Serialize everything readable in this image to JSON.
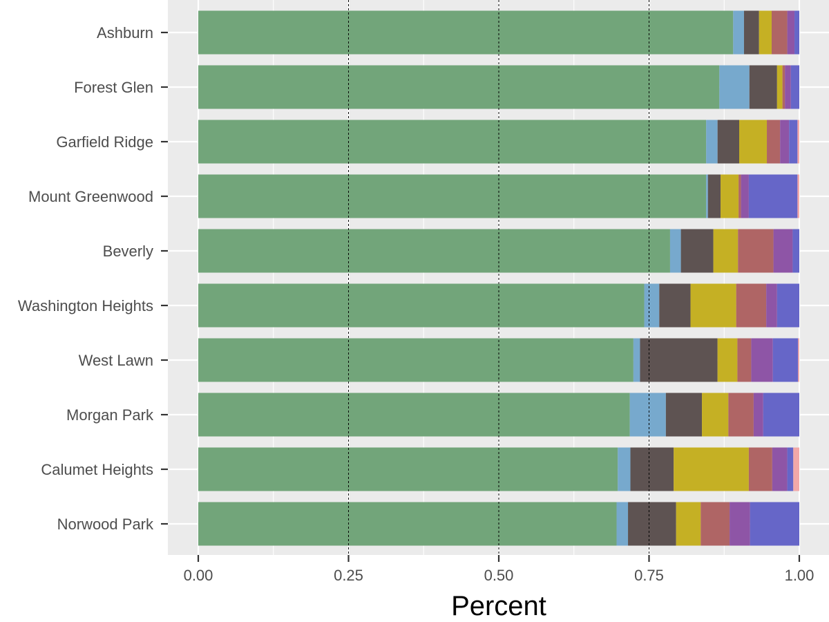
{
  "chart_data": {
    "type": "bar",
    "orientation": "horizontal",
    "stacked": true,
    "title": "",
    "xlabel": "Percent",
    "ylabel": "",
    "xlim": [
      0,
      1
    ],
    "x_ticks": [
      "0.00",
      "0.25",
      "0.50",
      "0.75",
      "1.00"
    ],
    "reference_lines": [
      0.25,
      0.5,
      0.75
    ],
    "grid": true,
    "legend": "none",
    "categories": [
      "Ashburn",
      "Forest Glen",
      "Garfield Ridge",
      "Mount Greenwood",
      "Beverly",
      "Washington Heights",
      "West Lawn",
      "Morgan Park",
      "Calumet Heights",
      "Norwood Park"
    ],
    "colors": [
      "#72a57a",
      "#77a9cd",
      "#5e5352",
      "#c5b024",
      "#af6565",
      "#8e55a6",
      "#6666c8",
      "#f2a8a8"
    ],
    "series": [
      {
        "values": [
          0.89,
          0.867,
          0.845,
          0.845,
          0.785,
          0.742,
          0.724,
          0.718,
          0.698,
          0.696
        ]
      },
      {
        "values": [
          0.018,
          0.05,
          0.019,
          0.003,
          0.018,
          0.025,
          0.011,
          0.06,
          0.021,
          0.019
        ]
      },
      {
        "values": [
          0.025,
          0.046,
          0.036,
          0.021,
          0.054,
          0.052,
          0.129,
          0.06,
          0.072,
          0.08
        ]
      },
      {
        "values": [
          0.021,
          0.009,
          0.046,
          0.03,
          0.041,
          0.076,
          0.033,
          0.044,
          0.125,
          0.041
        ]
      },
      {
        "values": [
          0.026,
          0.004,
          0.022,
          0.004,
          0.059,
          0.05,
          0.023,
          0.042,
          0.039,
          0.048
        ]
      },
      {
        "values": [
          0.012,
          0.01,
          0.015,
          0.013,
          0.032,
          0.018,
          0.036,
          0.016,
          0.025,
          0.034
        ]
      },
      {
        "values": [
          0.008,
          0.014,
          0.014,
          0.081,
          0.011,
          0.037,
          0.042,
          0.06,
          0.01,
          0.082
        ]
      },
      {
        "values": [
          0.0,
          0.0,
          0.003,
          0.003,
          0.0,
          0.0,
          0.002,
          0.0,
          0.01,
          0.0
        ]
      }
    ]
  }
}
